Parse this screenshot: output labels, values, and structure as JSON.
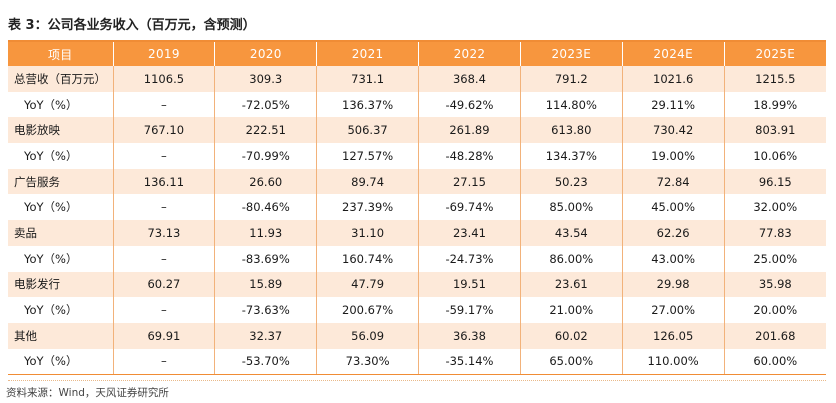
{
  "title": "表 3：公司各业务收入（百万元，含预测）",
  "source": "资料来源：Wind，天风证券研究所",
  "colors": {
    "header_bg": "#f7963e",
    "band_bg": "#fde9d9",
    "rule": "#f08c35"
  },
  "table": {
    "headers": [
      "项目",
      "2019",
      "2020",
      "2021",
      "2022",
      "2023E",
      "2024E",
      "2025E"
    ],
    "rows": [
      {
        "label": "总营收（百万元）",
        "values": [
          "1106.5",
          "309.3",
          "731.1",
          "368.4",
          "791.2",
          "1021.6",
          "1215.5"
        ]
      },
      {
        "label": "YoY（%）",
        "values": [
          "–",
          "-72.05%",
          "136.37%",
          "-49.62%",
          "114.80%",
          "29.11%",
          "18.99%"
        ]
      },
      {
        "label": "电影放映",
        "values": [
          "767.10",
          "222.51",
          "506.37",
          "261.89",
          "613.80",
          "730.42",
          "803.91"
        ]
      },
      {
        "label": "YoY（%）",
        "values": [
          "–",
          "-70.99%",
          "127.57%",
          "-48.28%",
          "134.37%",
          "19.00%",
          "10.06%"
        ]
      },
      {
        "label": "广告服务",
        "values": [
          "136.11",
          "26.60",
          "89.74",
          "27.15",
          "50.23",
          "72.84",
          "96.15"
        ]
      },
      {
        "label": "YoY（%）",
        "values": [
          "–",
          "-80.46%",
          "237.39%",
          "-69.74%",
          "85.00%",
          "45.00%",
          "32.00%"
        ]
      },
      {
        "label": "卖品",
        "values": [
          "73.13",
          "11.93",
          "31.10",
          "23.41",
          "43.54",
          "62.26",
          "77.83"
        ]
      },
      {
        "label": "YoY（%）",
        "values": [
          "–",
          "-83.69%",
          "160.74%",
          "-24.73%",
          "86.00%",
          "43.00%",
          "25.00%"
        ]
      },
      {
        "label": "电影发行",
        "values": [
          "60.27",
          "15.89",
          "47.79",
          "19.51",
          "23.61",
          "29.98",
          "35.98"
        ]
      },
      {
        "label": "YoY（%）",
        "values": [
          "–",
          "-73.63%",
          "200.67%",
          "-59.17%",
          "21.00%",
          "27.00%",
          "20.00%"
        ]
      },
      {
        "label": "其他",
        "values": [
          "69.91",
          "32.37",
          "56.09",
          "36.38",
          "60.02",
          "126.05",
          "201.68"
        ]
      },
      {
        "label": "YoY（%）",
        "values": [
          "–",
          "-53.70%",
          "73.30%",
          "-35.14%",
          "65.00%",
          "110.00%",
          "60.00%"
        ]
      }
    ]
  }
}
